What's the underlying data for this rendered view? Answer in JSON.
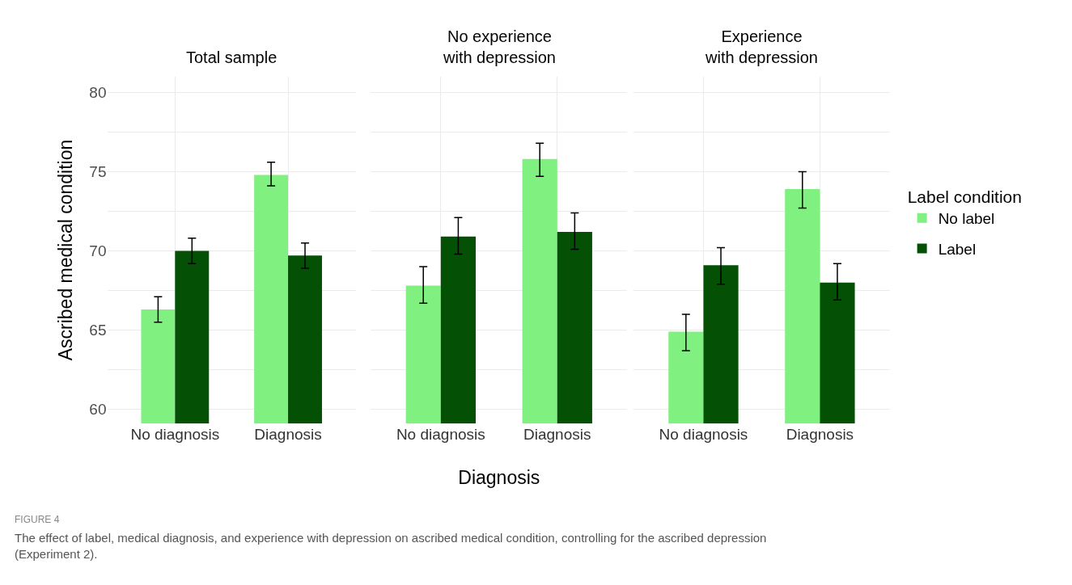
{
  "chart_data": [
    {
      "type": "bar",
      "title": "Total sample",
      "ylabel": "Ascribed medical condition",
      "categories": [
        "No diagnosis",
        "Diagnosis"
      ],
      "series": [
        {
          "color": "#80f080",
          "values": [
            66.3,
            74.8
          ],
          "errors": [
            [
              65.5,
              67.1
            ],
            [
              74.1,
              75.6
            ]
          ]
        },
        {
          "color": "#045004",
          "values": [
            70.0,
            69.7
          ],
          "errors": [
            [
              69.2,
              70.8
            ],
            [
              68.9,
              70.5
            ]
          ]
        }
      ],
      "ylim": [
        59.1,
        81
      ],
      "yticks": [
        60,
        {
          "value": 62.5,
          "label": null
        },
        65,
        {
          "value": 67.5,
          "label": null
        },
        70,
        {
          "value": 72.5,
          "label": null
        },
        75,
        {
          "value": 77.5,
          "label": null
        },
        80
      ],
      "grid": true,
      "annotations": [
        "FIGURE 4",
        "The effect of label, medical diagnosis, and experience with depression on ascribed medical condition, controlling for the ascribed depression\n(Experiment 2)."
      ]
    },
    {
      "type": "bar",
      "title": "No experience\nwith depression",
      "xlabel": "Diagnosis",
      "categories": [
        "No diagnosis",
        "Diagnosis"
      ],
      "series": [
        {
          "color": "#80f080",
          "values": [
            67.8,
            75.8
          ],
          "errors": [
            [
              66.7,
              69.0
            ],
            [
              74.7,
              76.8
            ]
          ]
        },
        {
          "color": "#045004",
          "values": [
            70.9,
            71.2
          ],
          "errors": [
            [
              69.8,
              72.1
            ],
            [
              70.1,
              72.4
            ]
          ]
        }
      ],
      "ylim": [
        59.1,
        81
      ],
      "yticks": [
        60,
        {
          "value": 62.5,
          "label": null
        },
        65,
        {
          "value": 67.5,
          "label": null
        },
        70,
        {
          "value": 72.5,
          "label": null
        },
        75,
        {
          "value": 77.5,
          "label": null
        },
        80
      ],
      "grid": true,
      "tick_labels": "x"
    },
    {
      "type": "bar",
      "title": "Experience\nwith depression",
      "legend_title": "Label condition",
      "categories": [
        "No diagnosis",
        "Diagnosis"
      ],
      "series": [
        {
          "name": "No label",
          "color": "#80f080",
          "values": [
            64.9,
            73.9
          ],
          "errors": [
            [
              63.7,
              66.0
            ],
            [
              72.7,
              75.0
            ]
          ]
        },
        {
          "name": "Label",
          "color": "#045004",
          "values": [
            69.1,
            68.0
          ],
          "errors": [
            [
              67.9,
              70.2
            ],
            [
              66.9,
              69.2
            ]
          ]
        }
      ],
      "ylim": [
        59.1,
        81
      ],
      "yticks": [
        60,
        {
          "value": 62.5,
          "label": null
        },
        65,
        {
          "value": 67.5,
          "label": null
        },
        70,
        {
          "value": 72.5,
          "label": null
        },
        75,
        {
          "value": 77.5,
          "label": null
        },
        80
      ],
      "grid": true,
      "legend": "right",
      "tick_labels": "x"
    }
  ]
}
